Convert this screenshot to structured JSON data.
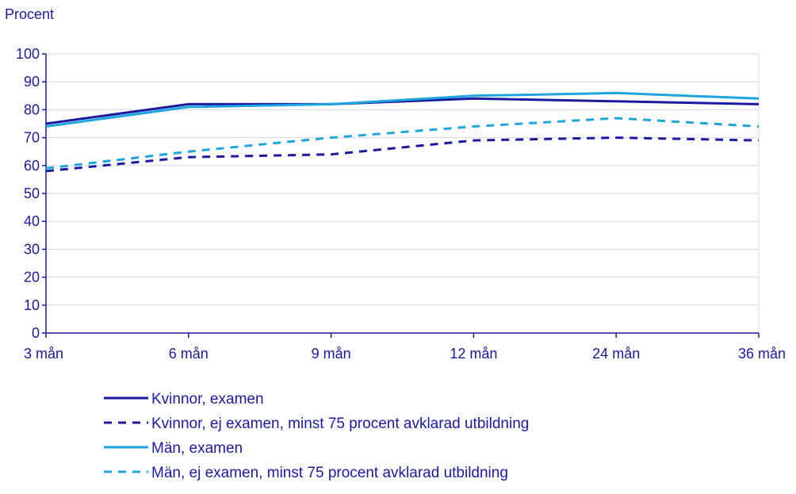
{
  "chart_data": {
    "type": "line",
    "title": "",
    "ylabel": "Procent",
    "xlabel": "",
    "categories": [
      "3 mån",
      "6 mån",
      "9 mån",
      "12 mån",
      "24 mån",
      "36 mån"
    ],
    "ylim": [
      0,
      100
    ],
    "yticks": [
      0,
      10,
      20,
      30,
      40,
      50,
      60,
      70,
      80,
      90,
      100
    ],
    "grid": true,
    "legend_position": "bottom",
    "series": [
      {
        "name": "Kvinnor, examen",
        "values": [
          75,
          82,
          82,
          84,
          83,
          82
        ],
        "color": "#1a1aa0",
        "dashed": false
      },
      {
        "name": "Kvinnor, ej examen, minst 75 procent avklarad utbildning",
        "values": [
          58,
          63,
          64,
          69,
          70,
          69
        ],
        "color": "#1a1aa0",
        "dashed": true
      },
      {
        "name": "Män, examen",
        "values": [
          74,
          81,
          82,
          85,
          86,
          84
        ],
        "color": "#1ea5e0",
        "dashed": false
      },
      {
        "name": "Män, ej examen, minst 75 procent avklarad utbildning",
        "values": [
          59,
          65,
          70,
          74,
          77,
          74
        ],
        "color": "#1ea5e0",
        "dashed": true
      }
    ]
  }
}
